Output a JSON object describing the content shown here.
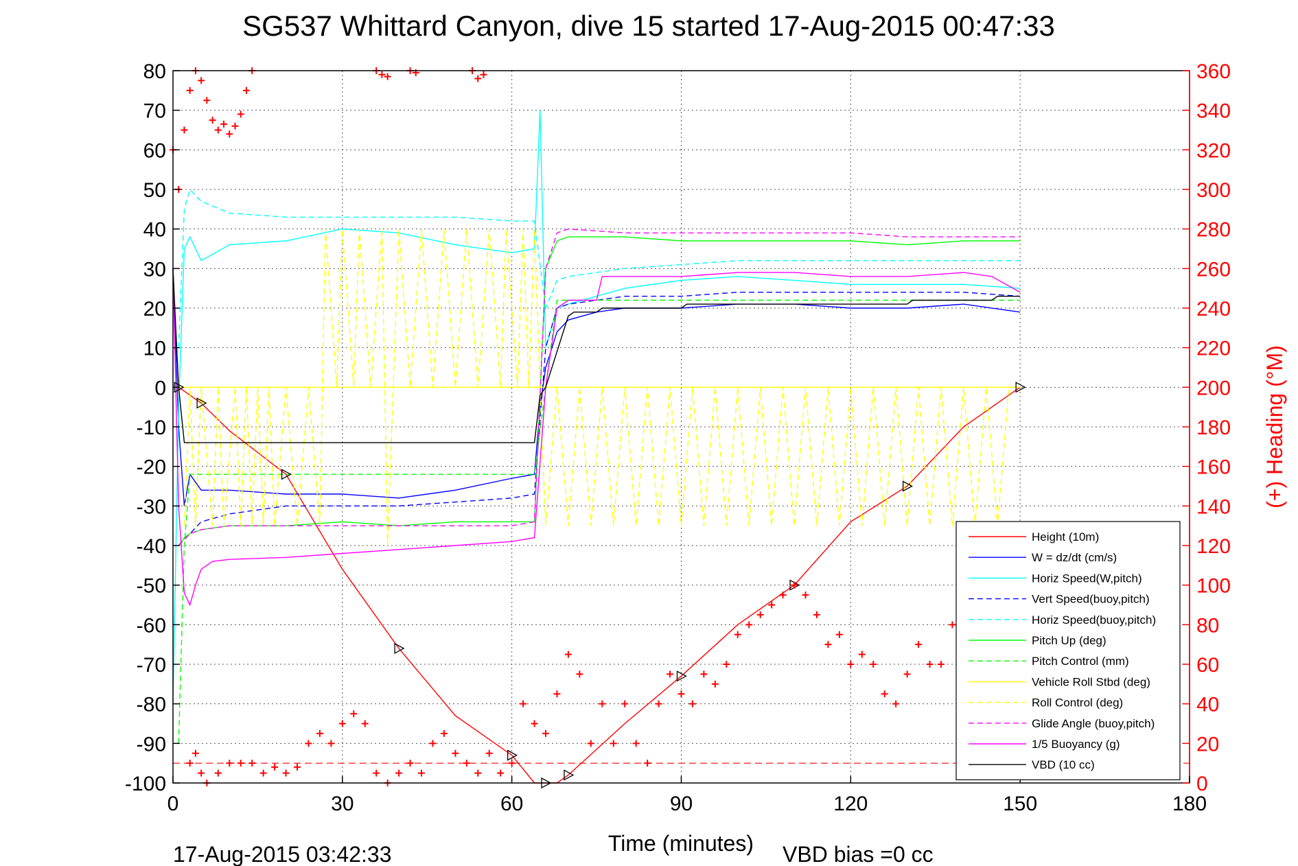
{
  "chart_data": {
    "type": "line",
    "title": "SG537 Whittard Canyon, dive 15 started 17-Aug-2015 00:47:33",
    "xlabel": "Time (minutes)",
    "ylabel_left": "",
    "ylabel_right": "(+) Heading (°M)",
    "xlim": [
      0,
      180
    ],
    "ylim_left": [
      -100,
      80
    ],
    "ylim_right": [
      0,
      360
    ],
    "x_ticks": [
      0,
      30,
      60,
      90,
      120,
      150,
      180
    ],
    "y_ticks_left": [
      80,
      70,
      60,
      50,
      40,
      30,
      20,
      10,
      0,
      -10,
      -20,
      -30,
      -40,
      -50,
      -60,
      -70,
      -80,
      -90,
      -100
    ],
    "y_ticks_right": [
      360,
      340,
      320,
      300,
      280,
      260,
      240,
      220,
      200,
      180,
      160,
      140,
      120,
      100,
      80,
      60,
      40,
      20,
      0
    ],
    "grid": true,
    "legend_position": "bottom-right",
    "footer_left": "17-Aug-2015 03:42:33",
    "footer_right": "VBD bias =0 cc",
    "series": [
      {
        "name": "Height (10m)",
        "color": "#ff0000",
        "style": "solid",
        "x": [
          1,
          2,
          5,
          10,
          20,
          30,
          40,
          50,
          60,
          64,
          66,
          68,
          70,
          80,
          90,
          100,
          110,
          120,
          130,
          140,
          150
        ],
        "y": [
          0,
          -1,
          -4,
          -11,
          -22,
          -46,
          -66,
          -83,
          -93,
          -100,
          -100,
          -100,
          -98,
          -85,
          -73,
          -60,
          -50,
          -34,
          -25,
          -10,
          0
        ]
      },
      {
        "name": "W = dz/dt (cm/s)",
        "color": "#0000ff",
        "style": "solid",
        "x": [
          0,
          1,
          2,
          3,
          5,
          10,
          20,
          30,
          40,
          50,
          60,
          64,
          65,
          66,
          68,
          70,
          75,
          80,
          90,
          100,
          110,
          120,
          130,
          140,
          150
        ],
        "y": [
          30,
          -10,
          -30,
          -22,
          -26,
          -26,
          -27,
          -27,
          -28,
          -26,
          -23,
          -22,
          -5,
          5,
          14,
          17,
          19,
          20,
          20,
          21,
          21,
          20,
          20,
          21,
          19
        ]
      },
      {
        "name": "Horiz Speed(W,pitch)",
        "color": "#00ffff",
        "style": "solid",
        "x": [
          0,
          1,
          2,
          3,
          5,
          10,
          20,
          30,
          40,
          50,
          60,
          64,
          65,
          66,
          68,
          70,
          75,
          80,
          90,
          100,
          110,
          120,
          130,
          140,
          150
        ],
        "y": [
          -80,
          -5,
          35,
          38,
          32,
          36,
          37,
          40,
          39,
          36,
          34,
          35,
          70,
          10,
          20,
          21,
          23,
          25,
          27,
          28,
          27,
          26,
          26,
          26,
          25
        ]
      },
      {
        "name": "Vert Speed(buoy,pitch)",
        "color": "#0000ff",
        "style": "dashed",
        "x": [
          1,
          3,
          5,
          10,
          20,
          30,
          40,
          50,
          60,
          64,
          66,
          68,
          70,
          75,
          80,
          90,
          100,
          110,
          120,
          130,
          140,
          150
        ],
        "y": [
          -40,
          -37,
          -34,
          -32,
          -30,
          -30,
          -30,
          -29,
          -28,
          -27,
          10,
          20,
          21,
          22,
          23,
          23,
          24,
          24,
          24,
          24,
          24,
          23
        ]
      },
      {
        "name": "Horiz Speed(buoy,pitch)",
        "color": "#00ffff",
        "style": "dashed",
        "x": [
          1,
          2,
          3,
          5,
          10,
          20,
          30,
          40,
          50,
          60,
          64,
          66,
          68,
          70,
          75,
          80,
          90,
          100,
          110,
          120,
          130,
          140,
          150
        ],
        "y": [
          10,
          45,
          50,
          47,
          44,
          43,
          43,
          43,
          43,
          42,
          42,
          20,
          27,
          28,
          29,
          30,
          31,
          32,
          32,
          32,
          32,
          32,
          32
        ]
      },
      {
        "name": "Pitch Up (deg)",
        "color": "#00ff00",
        "style": "solid",
        "x": [
          1,
          2,
          3,
          5,
          10,
          20,
          30,
          40,
          50,
          60,
          64,
          66,
          68,
          70,
          80,
          90,
          100,
          110,
          120,
          130,
          140,
          150
        ],
        "y": [
          -40,
          -38,
          -37,
          -36,
          -35,
          -35,
          -34,
          -35,
          -34,
          -34,
          -34,
          30,
          37,
          38,
          38,
          37,
          37,
          37,
          37,
          36,
          37,
          37
        ]
      },
      {
        "name": "Pitch Control (mm)",
        "color": "#00ff00",
        "style": "dashed",
        "x": [
          1,
          2,
          3,
          5,
          10,
          20,
          30,
          40,
          50,
          60,
          64,
          66,
          68,
          70,
          80,
          90,
          100,
          110,
          120,
          130,
          140,
          150
        ],
        "y": [
          -90,
          -40,
          -22,
          -22,
          -22,
          -22,
          -22,
          -22,
          -22,
          -22,
          -22,
          0,
          22,
          22,
          22,
          22,
          22,
          22,
          22,
          22,
          22,
          22
        ]
      },
      {
        "name": "Vehicle Roll Stbd (deg)",
        "color": "#ffff00",
        "style": "solid",
        "x": [
          0,
          10,
          20,
          30,
          40,
          50,
          60,
          64,
          66,
          70,
          80,
          90,
          100,
          110,
          120,
          130,
          140,
          150
        ],
        "y": [
          0,
          0,
          0,
          0,
          0,
          0,
          0,
          0,
          0,
          0,
          0,
          0,
          0,
          0,
          0,
          0,
          0,
          0
        ]
      },
      {
        "name": "Roll Control (deg)",
        "color": "#ffff00",
        "style": "dashed",
        "x": [
          2,
          3,
          4,
          5,
          7,
          8,
          9,
          11,
          12,
          13,
          14,
          15,
          16,
          17,
          18,
          20,
          22,
          24,
          26,
          27,
          29,
          30,
          32,
          33,
          35,
          37,
          38,
          40,
          42,
          44,
          46,
          48,
          50,
          52,
          54,
          56,
          58,
          59,
          61,
          62,
          63,
          64,
          65,
          66,
          68,
          70,
          72,
          74,
          76,
          78,
          80,
          82,
          84,
          86,
          88,
          90,
          92,
          94,
          96,
          98,
          100,
          102,
          104,
          106,
          108,
          110,
          112,
          114,
          116,
          118,
          120,
          122,
          124,
          126,
          128,
          130,
          132,
          134,
          136,
          138,
          140,
          142,
          144,
          146,
          148,
          150
        ],
        "y": [
          -35,
          0,
          -35,
          0,
          -35,
          0,
          -35,
          0,
          -35,
          0,
          -35,
          0,
          -35,
          0,
          -35,
          0,
          -35,
          0,
          -35,
          40,
          0,
          40,
          0,
          40,
          0,
          40,
          -40,
          40,
          0,
          40,
          0,
          40,
          0,
          40,
          0,
          40,
          0,
          40,
          0,
          40,
          0,
          40,
          0,
          -35,
          0,
          -35,
          0,
          -35,
          0,
          -35,
          0,
          -35,
          0,
          -35,
          0,
          -35,
          0,
          -35,
          0,
          -35,
          0,
          -35,
          0,
          -35,
          0,
          -35,
          0,
          -35,
          0,
          -35,
          0,
          -35,
          0,
          -35,
          0,
          -35,
          0,
          -35,
          0,
          -35,
          0,
          -35,
          0,
          -35,
          0,
          0
        ]
      },
      {
        "name": "Glide Angle (buoy,pitch)",
        "color": "#ff00ff",
        "style": "dashed",
        "x": [
          1,
          3,
          5,
          10,
          20,
          30,
          40,
          50,
          60,
          64,
          66,
          68,
          70,
          80,
          90,
          100,
          110,
          120,
          130,
          140,
          150
        ],
        "y": [
          -40,
          -37,
          -36,
          -35,
          -35,
          -35,
          -35,
          -35,
          -35,
          -34,
          30,
          39,
          40,
          39,
          39,
          39,
          39,
          39,
          38,
          38,
          38
        ]
      },
      {
        "name": "1/5 Buoyancy (g)",
        "color": "#ff00ff",
        "style": "solid",
        "x": [
          0,
          1,
          2,
          3,
          4,
          5,
          7,
          10,
          20,
          30,
          40,
          50,
          60,
          64,
          66,
          68,
          70,
          75,
          76,
          80,
          90,
          100,
          110,
          120,
          130,
          140,
          145,
          150
        ],
        "y": [
          30,
          -30,
          -52,
          -55,
          -50,
          -46,
          -44,
          -43.5,
          -43,
          -42,
          -41,
          -40,
          -39,
          -38,
          0,
          20,
          22,
          22,
          28,
          28,
          28,
          29,
          29,
          28,
          28,
          29,
          28,
          24
        ]
      },
      {
        "name": "VBD (10 cc)",
        "color": "#000000",
        "style": "solid",
        "x": [
          0,
          1,
          2,
          64,
          65,
          66,
          70,
          71,
          75,
          76,
          90,
          91,
          110,
          111,
          130,
          131,
          145,
          146,
          150
        ],
        "y": [
          30,
          0,
          -14,
          -14,
          -2,
          0,
          18,
          19,
          19,
          20,
          20,
          21,
          21,
          21,
          21,
          22,
          22,
          23,
          23
        ]
      }
    ],
    "heading_series": {
      "name": "(+) Heading",
      "color": "#ff0000",
      "marker": "+",
      "x": [
        0,
        1,
        2,
        3,
        4,
        5,
        6,
        7,
        8,
        9,
        10,
        11,
        12,
        13,
        14,
        36,
        37,
        38,
        42,
        43,
        53,
        54,
        55,
        2,
        3,
        4,
        5,
        6,
        8,
        10,
        12,
        14,
        16,
        18,
        20,
        22,
        24,
        26,
        28,
        30,
        32,
        34,
        36,
        38,
        40,
        42,
        44,
        46,
        48,
        50,
        52,
        54,
        56,
        58,
        60,
        62,
        64,
        66,
        68,
        70,
        72,
        74,
        76,
        78,
        80,
        82,
        84,
        86,
        88,
        90,
        92,
        94,
        96,
        98,
        100,
        102,
        104,
        106,
        108,
        110,
        112,
        114,
        116,
        118,
        120,
        122,
        124,
        126,
        128,
        130,
        132,
        134,
        136,
        138,
        140
      ],
      "y": [
        320,
        300,
        330,
        350,
        360,
        355,
        345,
        335,
        330,
        333,
        328,
        332,
        338,
        350,
        360,
        360,
        358,
        357,
        360,
        359,
        360,
        356,
        358,
        330,
        10,
        15,
        5,
        0,
        5,
        10,
        10,
        10,
        5,
        8,
        5,
        8,
        20,
        25,
        20,
        30,
        35,
        30,
        5,
        0,
        5,
        10,
        5,
        20,
        25,
        15,
        10,
        5,
        15,
        5,
        10,
        40,
        30,
        25,
        45,
        65,
        55,
        20,
        40,
        20,
        40,
        20,
        10,
        40,
        55,
        45,
        40,
        55,
        50,
        60,
        75,
        80,
        85,
        90,
        95,
        100,
        95,
        85,
        70,
        75,
        60,
        65,
        60,
        45,
        40,
        55,
        70,
        60,
        60,
        80,
        75
      ]
    }
  },
  "legend_entries": [
    "Height (10m)",
    "W = dz/dt (cm/s)",
    "Horiz Speed(W,pitch)",
    "Vert Speed(buoy,pitch)",
    "Horiz Speed(buoy,pitch)",
    "Pitch Up (deg)",
    "Pitch Control (mm)",
    "Vehicle Roll Stbd (deg)",
    "Roll Control (deg)",
    "Glide Angle (buoy,pitch)",
    "1/5 Buoyancy (g)",
    "VBD (10 cc)"
  ],
  "reference_lines": {
    "apogee_marker": {
      "color": "#ff0000",
      "style": "dashed",
      "y": -95
    }
  }
}
